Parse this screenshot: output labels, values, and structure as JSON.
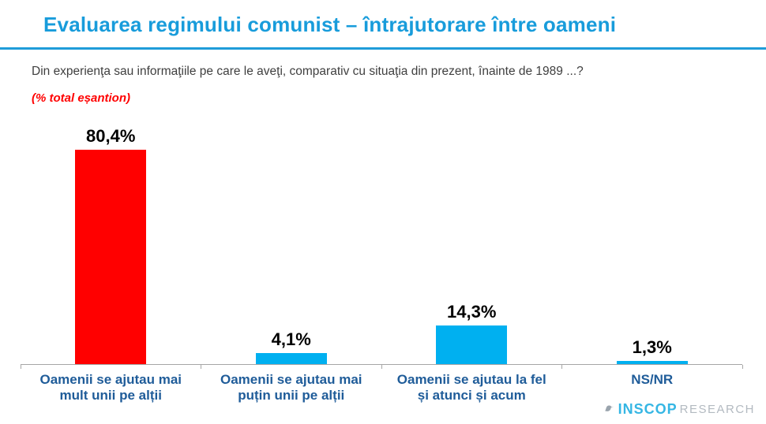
{
  "header": {
    "title": "Evaluarea regimului comunist – întrajutorare între oameni",
    "subtitle": "Din experienţa sau informaţiile pe care le aveţi, comparativ cu situaţia din prezent, înainte de 1989 ...?",
    "sample_note": "(% total eșantion)"
  },
  "chart_data": {
    "type": "bar",
    "title": "Evaluarea regimului comunist – întrajutorare între oameni",
    "categories": [
      "Oamenii se ajutau mai mult unii pe alții",
      "Oamenii se ajutau mai puțin unii pe alții",
      "Oamenii se ajutau la fel și atunci și acum",
      "NS/NR"
    ],
    "values": [
      80.4,
      4.1,
      14.3,
      1.3
    ],
    "value_labels": [
      "80,4%",
      "4,1%",
      "14,3%",
      "1,3%"
    ],
    "bar_colors": [
      "#FF0000",
      "#00B0F0",
      "#00B0F0",
      "#00B0F0"
    ],
    "xlabel": "",
    "ylabel": "",
    "ylim": [
      0,
      88
    ],
    "grid": false,
    "legend": "none",
    "value_label_position": "above-bar",
    "unit": "%"
  },
  "colors": {
    "title_cyan": "#189CDB",
    "rule_cyan": "#1F9CD9",
    "bar_red": "#FF0000",
    "bar_cyan": "#00B0F0",
    "category_label_blue": "#1F5C99",
    "subtitle_gray": "#3F3F3F",
    "note_red": "#FF0000",
    "axis_gray": "#A6A6A6",
    "logo_cyan": "#35B6E4",
    "logo_gray": "#B3BAC1"
  },
  "logo": {
    "name": "INSCOP",
    "suffix": "RESEARCH",
    "icon": "bird-icon"
  }
}
